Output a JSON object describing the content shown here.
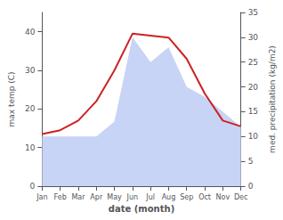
{
  "chart_data": {
    "type": "line",
    "xlabel": "date (month)",
    "ylabel": "max temp (C)",
    "y2label": "med. precipitation (kg/m2)",
    "categories": [
      "Jan",
      "Feb",
      "Mar",
      "Apr",
      "May",
      "Jun",
      "Jul",
      "Aug",
      "Sep",
      "Oct",
      "Nov",
      "Dec"
    ],
    "series": [
      {
        "type": "area",
        "color": "#c8d4f5",
        "axis": "y2",
        "values": [
          10.0,
          10.0,
          10.0,
          10.0,
          13.0,
          30.0,
          25.0,
          28.0,
          20.0,
          18.0,
          15.0,
          12.0
        ]
      },
      {
        "type": "line",
        "color": "#cc2222",
        "values": [
          13.5,
          14.5,
          17.0,
          22.0,
          30.0,
          39.5,
          39.0,
          38.5,
          33.0,
          24.0,
          17.0,
          15.5
        ]
      }
    ],
    "ylim": [
      0,
      45
    ],
    "yticks": [
      0,
      10,
      20,
      30,
      40
    ],
    "y2lim": [
      0,
      35
    ],
    "y2ticks": [
      0,
      5,
      10,
      15,
      20,
      25,
      30,
      35
    ],
    "grid": false
  }
}
